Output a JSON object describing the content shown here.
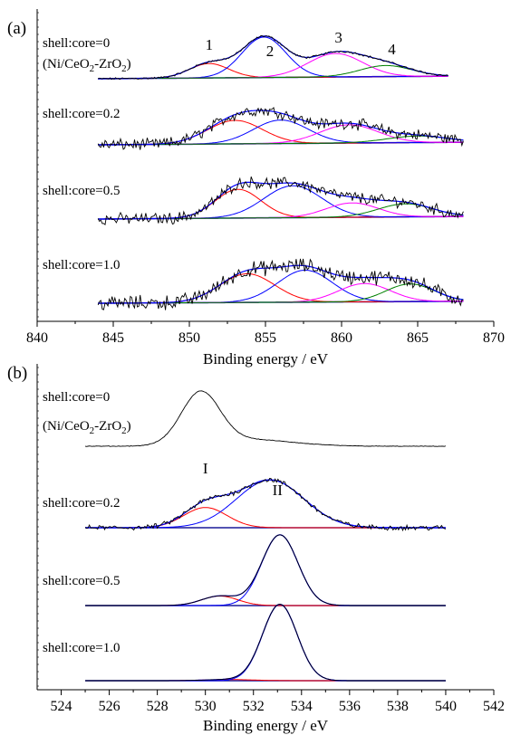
{
  "colors": {
    "raw": "#000000",
    "background": "#1a1a99",
    "fit": "#0000ff",
    "peak1": "#ff0000",
    "peak2": "#0000ff",
    "peak3": "#ff00ff",
    "peak4": "#008000"
  },
  "chart_data": [
    {
      "panel": "(a)",
      "type": "line",
      "xlabel": "Binding energy / eV",
      "xlim": [
        840,
        870
      ],
      "xticks": [
        840,
        845,
        850,
        855,
        860,
        865,
        870
      ],
      "peak_labels": [
        "1",
        "2",
        "3",
        "4"
      ],
      "peak_label_x": [
        851.3,
        855.3,
        859.8,
        863.3
      ],
      "spectra": [
        {
          "label": "shell:core=0",
          "sublabel": "(Ni/CeO",
          "sub": "2",
          "mid": "-ZrO",
          "sub2": "2",
          "end": ")",
          "range": [
            844,
            867
          ],
          "noise": 0.012,
          "bg": [
            0.0,
            0.04
          ],
          "peaks": [
            {
              "center": 851.3,
              "height": 0.22,
              "width": 1.3,
              "color": "#ff0000"
            },
            {
              "center": 854.9,
              "height": 0.62,
              "width": 1.45,
              "color": "#0000ff"
            },
            {
              "center": 859.6,
              "height": 0.36,
              "width": 1.8,
              "color": "#ff00ff"
            },
            {
              "center": 862.9,
              "height": 0.17,
              "width": 1.7,
              "color": "#008000"
            }
          ]
        },
        {
          "label": "shell:core=0.2",
          "range": [
            844,
            868
          ],
          "noise": 0.07,
          "bg": [
            0.0,
            0.04
          ],
          "peaks": [
            {
              "center": 853.0,
              "height": 0.36,
              "width": 1.8,
              "color": "#ff0000"
            },
            {
              "center": 856.0,
              "height": 0.36,
              "width": 1.8,
              "color": "#0000ff"
            },
            {
              "center": 860.5,
              "height": 0.28,
              "width": 1.9,
              "color": "#ff00ff"
            },
            {
              "center": 865.0,
              "height": 0.1,
              "width": 2.0,
              "color": "#008000"
            }
          ]
        },
        {
          "label": "shell:core=0.5",
          "range": [
            844,
            868
          ],
          "noise": 0.07,
          "bg": [
            0.0,
            0.04
          ],
          "peaks": [
            {
              "center": 853.2,
              "height": 0.44,
              "width": 1.5,
              "color": "#ff0000"
            },
            {
              "center": 856.8,
              "height": 0.49,
              "width": 1.9,
              "color": "#0000ff"
            },
            {
              "center": 860.7,
              "height": 0.22,
              "width": 1.7,
              "color": "#ff00ff"
            },
            {
              "center": 864.2,
              "height": 0.2,
              "width": 1.8,
              "color": "#008000"
            }
          ]
        },
        {
          "label": "shell:core=1.0",
          "range": [
            844,
            868
          ],
          "noise": 0.09,
          "bg": [
            0.0,
            0.03
          ],
          "peaks": [
            {
              "center": 853.8,
              "height": 0.44,
              "width": 1.8,
              "color": "#ff0000"
            },
            {
              "center": 857.6,
              "height": 0.49,
              "width": 1.8,
              "color": "#0000ff"
            },
            {
              "center": 861.5,
              "height": 0.28,
              "width": 1.7,
              "color": "#ff00ff"
            },
            {
              "center": 864.5,
              "height": 0.27,
              "width": 1.6,
              "color": "#008000"
            }
          ]
        }
      ]
    },
    {
      "panel": "(b)",
      "type": "line",
      "xlabel": "Binding energy / eV",
      "xlim": [
        523,
        542
      ],
      "xticks": [
        524,
        526,
        528,
        530,
        532,
        534,
        536,
        538,
        540,
        542
      ],
      "peak_labels": [
        "I",
        "II"
      ],
      "peak_label_x": [
        530.0,
        533.0
      ],
      "spectra": [
        {
          "label": "shell:core=0",
          "sublabel": "(Ni/CeO",
          "sub": "2",
          "mid": "-ZrO",
          "sub2": "2",
          "end": ")",
          "range": [
            525,
            540
          ],
          "noise": 0.004,
          "bg": [
            0.0,
            0.0
          ],
          "peaks": [
            {
              "center": 529.8,
              "height": 0.92,
              "width": 0.8,
              "color": "#000000",
              "hidden": true
            },
            {
              "center": 531.8,
              "height": 0.12,
              "width": 1.8,
              "color": "#000000",
              "hidden": true
            }
          ],
          "rawOnly": true
        },
        {
          "label": "shell:core=0.2",
          "range": [
            525,
            540
          ],
          "noise": 0.035,
          "bg": [
            0.0,
            0.0
          ],
          "peaks": [
            {
              "center": 530.0,
              "height": 0.36,
              "width": 0.9,
              "color": "#ff0000"
            },
            {
              "center": 532.7,
              "height": 0.85,
              "width": 1.4,
              "color": "#0000ff"
            }
          ]
        },
        {
          "label": "shell:core=0.5",
          "range": [
            525,
            540
          ],
          "noise": 0.0,
          "bg": [
            0.0,
            0.0
          ],
          "peaks": [
            {
              "center": 530.6,
              "height": 0.17,
              "width": 0.75,
              "color": "#ff0000"
            },
            {
              "center": 533.1,
              "height": 1.26,
              "width": 0.75,
              "color": "#0000ff"
            }
          ]
        },
        {
          "label": "shell:core=1.0",
          "range": [
            525,
            540
          ],
          "noise": 0.0,
          "bg": [
            0.0,
            0.0
          ],
          "peaks": [
            {
              "center": 531.0,
              "height": 0.02,
              "width": 1.0,
              "color": "#ff0000"
            },
            {
              "center": 533.1,
              "height": 1.36,
              "width": 0.72,
              "color": "#0000ff"
            }
          ]
        }
      ]
    }
  ]
}
